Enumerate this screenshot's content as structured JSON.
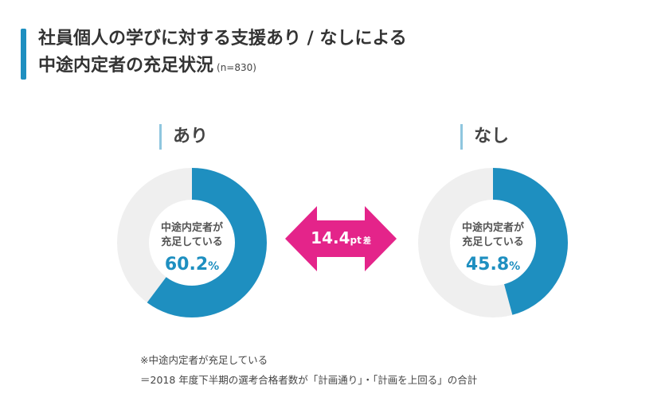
{
  "title": {
    "line1": "社員個人の学びに対する支援あり / なしによる",
    "line2": "中途内定者の充足状況",
    "sample": "(n=830)"
  },
  "colors": {
    "accent": "#1e8fc0",
    "track": "#efefef",
    "arrow": "#e4248a",
    "label_bar": "#8fc6df"
  },
  "chart_data": {
    "type": "pie",
    "subtype": "donut",
    "title": "社員個人の学びに対する支援あり / なしによる 中途内定者の充足状況",
    "groups": [
      {
        "name": "あり",
        "center_label": [
          "中途内定者が",
          "充足している"
        ],
        "value": 60.2,
        "value_text": "60.2",
        "unit": "%"
      },
      {
        "name": "なし",
        "center_label": [
          "中途内定者が",
          "充足している"
        ],
        "value": 45.8,
        "value_text": "45.8",
        "unit": "%"
      }
    ],
    "difference": {
      "value": 14.4,
      "value_text": "14.4",
      "unit": "pt",
      "suffix": "差"
    }
  },
  "footnotes": [
    "※中途内定者が充足している",
    "＝2018 年度下半期の選考合格者数が「計画通り」・「計画を上回る」の合計"
  ]
}
